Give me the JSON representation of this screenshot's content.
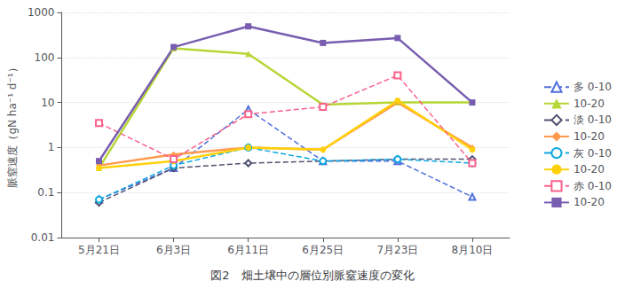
{
  "chart_data": {
    "type": "line",
    "title": "図2　畑土壌中の層位別脈窒速度の変化",
    "ylabel": "脈窒速度（gN ha⁻¹ d⁻¹）",
    "categories": [
      "5月21日",
      "6月3日",
      "6月11日",
      "6月25日",
      "7月23日",
      "8月10日"
    ],
    "series": [
      {
        "name": "多 0-10",
        "values": [
          0.07,
          0.35,
          7.0,
          0.5,
          0.5,
          0.08
        ],
        "marker": "open-triangle",
        "line_style": "dashed"
      },
      {
        "name": "10-20",
        "values": [
          0.35,
          160.0,
          120.0,
          9.0,
          10.0,
          10.0
        ],
        "marker": "triangle",
        "line_style": "solid"
      },
      {
        "name": "淡 0-10",
        "values": [
          0.06,
          0.35,
          0.45,
          0.5,
          0.55,
          0.55
        ],
        "marker": "open-diamond",
        "line_style": "dashed"
      },
      {
        "name": "10-20",
        "values": [
          0.4,
          0.7,
          1.0,
          0.9,
          10.0,
          1.0
        ],
        "marker": "diamond",
        "line_style": "solid"
      },
      {
        "name": "灰 0-10",
        "values": [
          0.07,
          0.4,
          1.0,
          0.5,
          0.55,
          0.45
        ],
        "marker": "open-circle",
        "line_style": "dashed"
      },
      {
        "name": "10-20",
        "values": [
          0.35,
          0.5,
          1.0,
          0.9,
          11.0,
          0.9
        ],
        "marker": "circle",
        "line_style": "solid"
      },
      {
        "name": "赤 0-10",
        "values": [
          3.5,
          0.55,
          5.5,
          8.0,
          40.0,
          0.45
        ],
        "marker": "open-square",
        "line_style": "dashed"
      },
      {
        "name": "10-20",
        "values": [
          0.5,
          170.0,
          490.0,
          210.0,
          270.0,
          10.0
        ],
        "marker": "square",
        "line_style": "solid"
      }
    ],
    "ylim": [
      0.01,
      1000
    ],
    "yticks": [
      0.01,
      0.1,
      1,
      10,
      100,
      1000
    ],
    "log": "y",
    "grid": true,
    "legend": "right"
  }
}
